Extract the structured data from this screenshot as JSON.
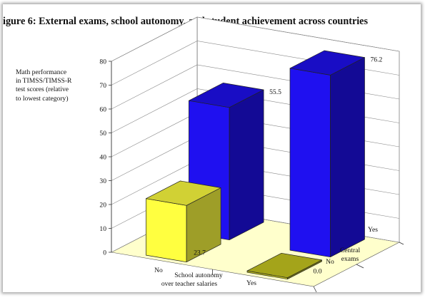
{
  "figure_title": "igure 6:  External exams, school autonomy, and student achievement across countries",
  "chart_data": {
    "type": "bar",
    "title": "igure 6:  External exams, school autonomy, and student achievement across countries",
    "ylabel": "Math performance in TIMSS/TIMSS-R test scores (relative to lowest category)",
    "ylabel_lines": [
      "Math performance",
      "in TIMSS/TIMSS-R",
      "test scores (relative",
      "to lowest category)"
    ],
    "ylim": [
      0,
      80
    ],
    "yticks": [
      0,
      10,
      20,
      30,
      40,
      50,
      60,
      70,
      80
    ],
    "x_axis": {
      "label_lines": [
        "School autonomy",
        "over teacher salaries"
      ],
      "categories": [
        "No",
        "Yes"
      ]
    },
    "depth_axis": {
      "label_lines": [
        "Central",
        "exams"
      ],
      "categories": [
        "No",
        "Yes"
      ]
    },
    "grid": true,
    "bars": [
      {
        "school_autonomy": "No",
        "central_exams": "No",
        "value": 23.7,
        "label": "23.7",
        "color": "#ffff40"
      },
      {
        "school_autonomy": "No",
        "central_exams": "Yes",
        "value": 55.5,
        "label": "55.5",
        "color": "#1f10f0"
      },
      {
        "school_autonomy": "Yes",
        "central_exams": "No",
        "value": 0.0,
        "label": "0.0",
        "color": "#c8c820"
      },
      {
        "school_autonomy": "Yes",
        "central_exams": "Yes",
        "value": 76.2,
        "label": "76.2",
        "color": "#1f10f0"
      }
    ]
  }
}
